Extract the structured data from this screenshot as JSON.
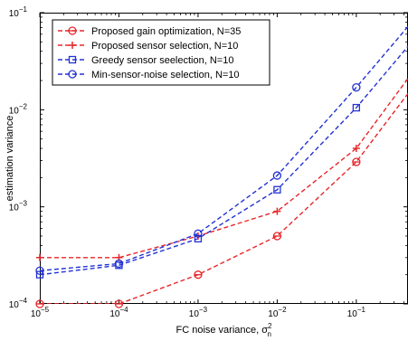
{
  "chart_data": {
    "type": "line",
    "xscale": "log",
    "yscale": "log",
    "xlabel": "FC noise variance, σ",
    "xlabel_sup": "2",
    "xlabel_sub": "n",
    "ylabel": "estimation variance",
    "xlim": [
      1e-05,
      0.45
    ],
    "ylim": [
      0.0001,
      0.1
    ],
    "x_ticks": [
      {
        "value": 1e-05,
        "base": "10",
        "exp": "−5"
      },
      {
        "value": 0.0001,
        "base": "10",
        "exp": "−4"
      },
      {
        "value": 0.001,
        "base": "10",
        "exp": "−3"
      },
      {
        "value": 0.01,
        "base": "10",
        "exp": "−2"
      },
      {
        "value": 0.1,
        "base": "10",
        "exp": "−1"
      }
    ],
    "y_ticks": [
      {
        "value": 0.0001,
        "base": "10",
        "exp": "−4"
      },
      {
        "value": 0.001,
        "base": "10",
        "exp": "−3"
      },
      {
        "value": 0.01,
        "base": "10",
        "exp": "−2"
      },
      {
        "value": 0.1,
        "base": "10",
        "exp": "−1"
      }
    ],
    "grid": false,
    "legend_position": "top-left",
    "series": [
      {
        "name": "Proposed gain optimization, N=35",
        "color": "#e8262a",
        "marker": "circle-bar",
        "x": [
          1e-05,
          0.0001,
          0.001,
          0.01,
          0.1
        ],
        "y": [
          0.0001,
          0.0001,
          0.0002,
          0.0005,
          0.0029
        ],
        "extend_to": [
          0.45,
          0.0147
        ]
      },
      {
        "name": "Proposed sensor selection, N=10",
        "color": "#e8262a",
        "marker": "plus",
        "x": [
          1e-05,
          0.0001,
          0.001,
          0.01,
          0.1
        ],
        "y": [
          0.0003,
          0.0003,
          0.0005,
          0.0009,
          0.004
        ],
        "extend_to": [
          0.45,
          0.021
        ]
      },
      {
        "name": "Greedy sensor seelection, N=10",
        "color": "#2232d4",
        "marker": "square",
        "x": [
          1e-05,
          0.0001,
          0.001,
          0.01,
          0.1
        ],
        "y": [
          0.0002,
          0.00025,
          0.00047,
          0.0015,
          0.0105
        ],
        "extend_to": [
          0.45,
          0.045
        ]
      },
      {
        "name": "Min-sensor-noise selection, N=10",
        "color": "#2232d4",
        "marker": "circle",
        "x": [
          1e-05,
          0.0001,
          0.001,
          0.01,
          0.1
        ],
        "y": [
          0.00022,
          0.00026,
          0.00053,
          0.0021,
          0.017
        ],
        "extend_to": [
          0.45,
          0.072
        ]
      }
    ]
  }
}
